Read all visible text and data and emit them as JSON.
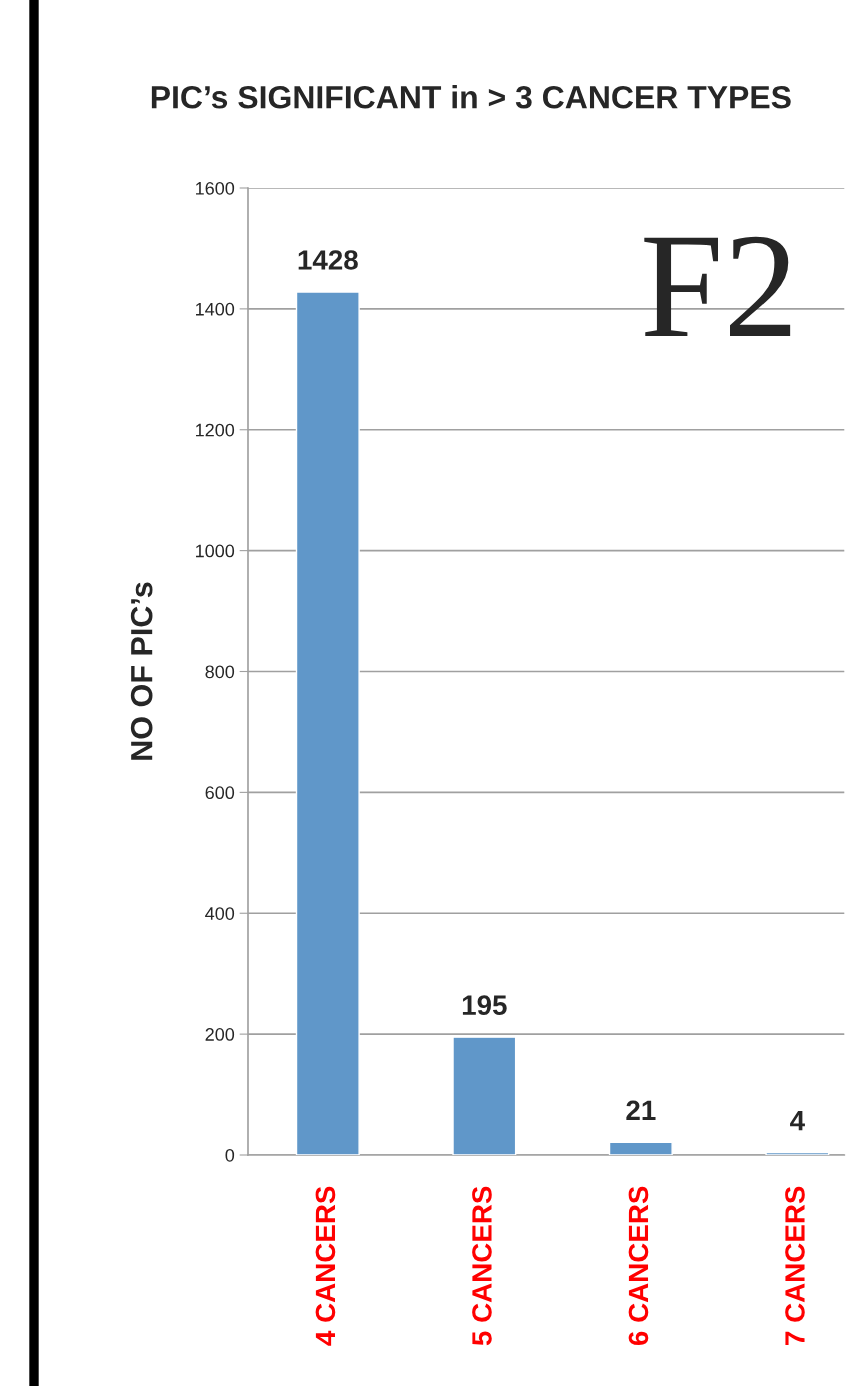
{
  "chart_data": {
    "type": "bar",
    "title": "PIC’s SIGNIFICANT in > 3 CANCER TYPES",
    "ylabel": "NO OF PIC’s",
    "categories": [
      "4 CANCERS",
      "5 CANCERS",
      "6 CANCERS",
      "7 CANCERS"
    ],
    "values": [
      1428,
      195,
      21,
      4
    ],
    "color": "#6097c9",
    "ylim": [
      0,
      1600
    ],
    "yticks": [
      0,
      200,
      400,
      600,
      800,
      1000,
      1200,
      1400,
      1600
    ],
    "grid": "y",
    "data_labels": true,
    "annotations": [
      "F2"
    ]
  }
}
